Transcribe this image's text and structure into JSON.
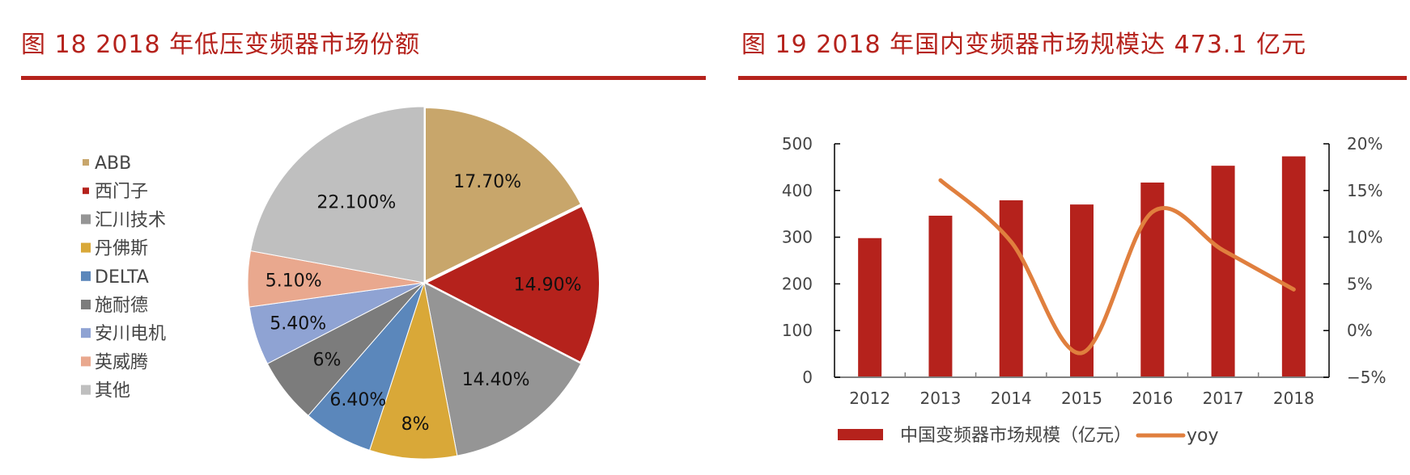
{
  "figures": [
    {
      "title": "图 18 2018 年低压变频器市场份额",
      "accent_color": "#b5221c"
    },
    {
      "title": "图 19 2018 年国内变频器市场规模达 473.1 亿元",
      "accent_color": "#b5221c"
    }
  ],
  "chart_data": [
    {
      "type": "pie",
      "title": "2018年低压变频器市场份额",
      "categories": [
        "ABB",
        "西门子",
        "汇川技术",
        "丹佛斯",
        "DELTA",
        "施耐德",
        "安川电机",
        "英威腾",
        "其他"
      ],
      "values": [
        17.7,
        14.9,
        14.4,
        8.0,
        6.4,
        6.0,
        5.4,
        5.1,
        22.1
      ],
      "labels": [
        "17.70%",
        "14.90%",
        "14.40%",
        "8%",
        "6.40%",
        "6%",
        "5.40%",
        "5.10%",
        "22.100%"
      ],
      "colors": [
        "#c8a66b",
        "#b5221c",
        "#959595",
        "#d9a838",
        "#5b87bb",
        "#7c7c7c",
        "#8fa3d3",
        "#e9a88e",
        "#bfbfbf"
      ],
      "legend_position": "left",
      "start_angle_deg": 0,
      "direction": "clockwise"
    },
    {
      "type": "bar+line",
      "title": "2018年国内变频器市场规模达473.1亿元",
      "categories": [
        "2012",
        "2013",
        "2014",
        "2015",
        "2016",
        "2017",
        "2018"
      ],
      "series": [
        {
          "name": "中国变频器市场规模（亿元）",
          "type": "bar",
          "axis": "left",
          "color": "#b5221c",
          "values": [
            298,
            346,
            379,
            370,
            417,
            453,
            473.1
          ]
        },
        {
          "name": "yoy",
          "type": "line",
          "axis": "right",
          "color": "#e07f3e",
          "values": [
            null,
            16.1,
            9.5,
            -2.4,
            12.7,
            8.6,
            4.4
          ]
        }
      ],
      "left_axis": {
        "min": 0,
        "max": 500,
        "ticks": [
          "0",
          "100",
          "200",
          "300",
          "400",
          "500"
        ]
      },
      "right_axis": {
        "min": -5,
        "max": 20,
        "ticks": [
          "-5%",
          "0%",
          "5%",
          "10%",
          "15%",
          "20%"
        ]
      },
      "grid": false,
      "legend_position": "bottom",
      "legend": [
        "中国变频器市场规模（亿元）",
        "yoy"
      ]
    }
  ]
}
